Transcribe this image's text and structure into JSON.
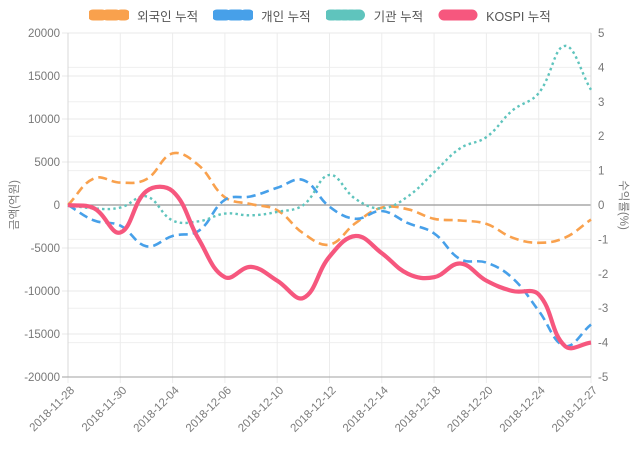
{
  "chart": {
    "legend": {
      "items": [
        {
          "key": "foreign",
          "label": "외국인 누적",
          "color": "#f9a14d",
          "line_style": "dashed"
        },
        {
          "key": "individual",
          "label": "개인 누적",
          "color": "#47a0e9",
          "line_style": "dashed"
        },
        {
          "key": "institution",
          "label": "기관 누적",
          "color": "#5fc4bd",
          "line_style": "dotted"
        },
        {
          "key": "kospi",
          "label": "KOSPI 누적",
          "color": "#f6577e",
          "line_style": "solid"
        }
      ]
    }
  },
  "chart_data": {
    "type": "line",
    "title": "",
    "grid": true,
    "legend_position": "top",
    "background": "#ffffff",
    "x": [
      "2018-11-28",
      "2018-11-29",
      "2018-11-30",
      "2018-12-03",
      "2018-12-04",
      "2018-12-05",
      "2018-12-06",
      "2018-12-07",
      "2018-12-10",
      "2018-12-11",
      "2018-12-12",
      "2018-12-13",
      "2018-12-14",
      "2018-12-17",
      "2018-12-18",
      "2018-12-19",
      "2018-12-20",
      "2018-12-21",
      "2018-12-24",
      "2018-12-26",
      "2018-12-27"
    ],
    "x_tick_labels": [
      "2018-11-28",
      "2018-11-30",
      "2018-12-04",
      "2018-12-06",
      "2018-12-10",
      "2018-12-12",
      "2018-12-14",
      "2018-12-18",
      "2018-12-20",
      "2018-12-24",
      "2018-12-27"
    ],
    "y_left": {
      "title": "금액(억원)",
      "min": -20000,
      "max": 20000,
      "step": 5000,
      "ticks": [
        "20000",
        "15000",
        "10000",
        "5000",
        "0",
        "-5000",
        "-10000",
        "-15000",
        "-20000"
      ]
    },
    "y_right": {
      "title": "수익률(%)",
      "min": -5,
      "max": 5,
      "step": 1,
      "ticks": [
        "5",
        "4",
        "3",
        "2",
        "1",
        "0",
        "-1",
        "-2",
        "-3",
        "-4",
        "-5"
      ]
    },
    "series": [
      {
        "key": "foreign",
        "name": "외국인 누적",
        "yaxis": "left",
        "color": "#f9a14d",
        "line_style": "dashed",
        "values": [
          0,
          3100,
          2600,
          3000,
          6000,
          4600,
          900,
          100,
          -600,
          -3300,
          -4600,
          -2100,
          -300,
          -500,
          -1600,
          -1800,
          -2200,
          -3800,
          -4400,
          -3800,
          -1700
        ]
      },
      {
        "key": "individual",
        "name": "개인 누적",
        "yaxis": "left",
        "color": "#47a0e9",
        "line_style": "dashed",
        "values": [
          0,
          -1800,
          -2400,
          -4800,
          -3600,
          -3000,
          600,
          1000,
          2000,
          2900,
          -200,
          -1600,
          -700,
          -2100,
          -3300,
          -6300,
          -6700,
          -8500,
          -12300,
          -16400,
          -13900
        ]
      },
      {
        "key": "institution",
        "name": "기관 누적",
        "yaxis": "left",
        "color": "#5fc4bd",
        "line_style": "dotted",
        "values": [
          0,
          -400,
          -300,
          1000,
          -1800,
          -1900,
          -1000,
          -1200,
          -800,
          0,
          3500,
          700,
          -400,
          1000,
          3800,
          6600,
          7900,
          11000,
          13000,
          18500,
          13400
        ]
      },
      {
        "key": "kospi",
        "name": "KOSPI 누적",
        "yaxis": "right",
        "color": "#f6577e",
        "line_style": "solid",
        "values": [
          0,
          -0.1,
          -0.8,
          0.4,
          0.4,
          -1.0,
          -2.1,
          -1.8,
          -2.2,
          -2.7,
          -1.5,
          -0.9,
          -1.4,
          -2.0,
          -2.1,
          -1.7,
          -2.2,
          -2.5,
          -2.6,
          -4.1,
          -4.0
        ]
      }
    ]
  }
}
